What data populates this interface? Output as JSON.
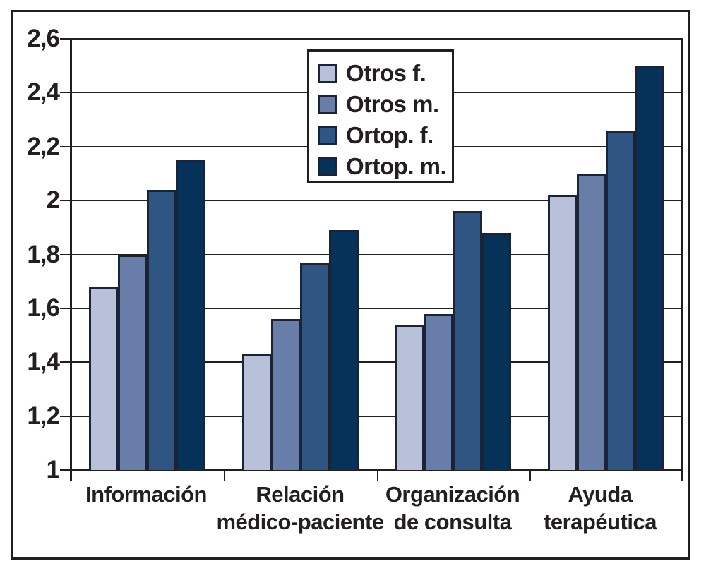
{
  "chart_data": {
    "type": "bar",
    "title": "",
    "xlabel": "",
    "ylabel": "",
    "categories": [
      "Información",
      "Relación médico-paciente",
      "Organización de consulta",
      "Ayuda terapéutica"
    ],
    "category_label_lines": [
      [
        "Información"
      ],
      [
        "Relación",
        "médico-paciente"
      ],
      [
        "Organización",
        "de consulta"
      ],
      [
        "Ayuda",
        "terapéutica"
      ]
    ],
    "series": [
      {
        "name": "Otros f.",
        "color": "#b8c1d9",
        "values": [
          1.68,
          1.43,
          1.54,
          2.02
        ]
      },
      {
        "name": "Otros m.",
        "color": "#687ea9",
        "values": [
          1.8,
          1.56,
          1.58,
          2.1
        ]
      },
      {
        "name": "Ortop. f.",
        "color": "#2f5583",
        "values": [
          2.04,
          1.77,
          1.96,
          2.26
        ]
      },
      {
        "name": "Ortop. m.",
        "color": "#063159",
        "values": [
          2.15,
          1.89,
          1.88,
          2.5
        ]
      }
    ],
    "ylim": [
      1.0,
      2.6
    ],
    "ytick_values": [
      2.6,
      2.4,
      2.2,
      2.0,
      1.8,
      1.6,
      1.4,
      1.2,
      1.0
    ],
    "ytick_labels": [
      "2,6",
      "2,4",
      "2,2",
      "2",
      "1,8",
      "1,6",
      "1,4",
      "1,2",
      "1"
    ],
    "decimal_separator": ",",
    "grid": true,
    "legend_position": "inside-top-center"
  },
  "style": {
    "background": "#ffffff",
    "frame_color": "#1f1f1f",
    "grid_color": "#1f1f1f",
    "text_color": "#231f20",
    "bar_border_color": "#1b2437"
  }
}
